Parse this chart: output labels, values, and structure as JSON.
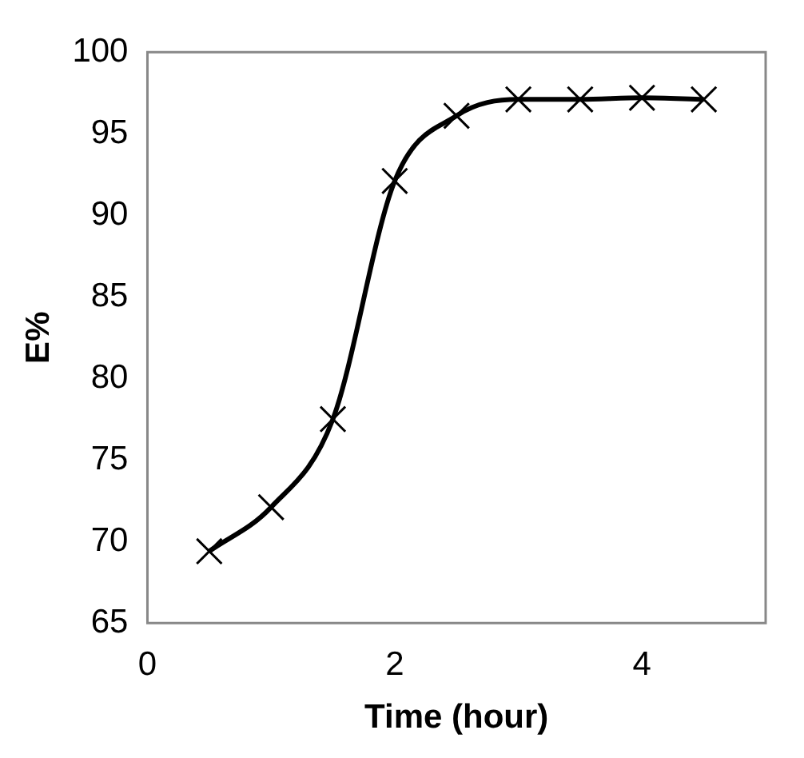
{
  "chart_data": {
    "type": "line",
    "xlabel": "Time (hour)",
    "ylabel": "E%",
    "x": [
      0.5,
      1,
      1.5,
      2,
      2.5,
      3,
      3.5,
      4,
      4.5
    ],
    "series": [
      {
        "color": "#000000",
        "values": [
          69.4,
          72.1,
          77.5,
          92.1,
          96.1,
          97.1,
          97.1,
          97.2,
          97.1
        ]
      }
    ],
    "xlim": [
      0,
      5
    ],
    "xticks": [
      0,
      2,
      4
    ],
    "ylim": [
      65,
      100
    ],
    "yticks": [
      65,
      70,
      75,
      80,
      85,
      90,
      95,
      100
    ],
    "grid": false,
    "legend": false,
    "marker": "cross",
    "line_style": "solid"
  }
}
